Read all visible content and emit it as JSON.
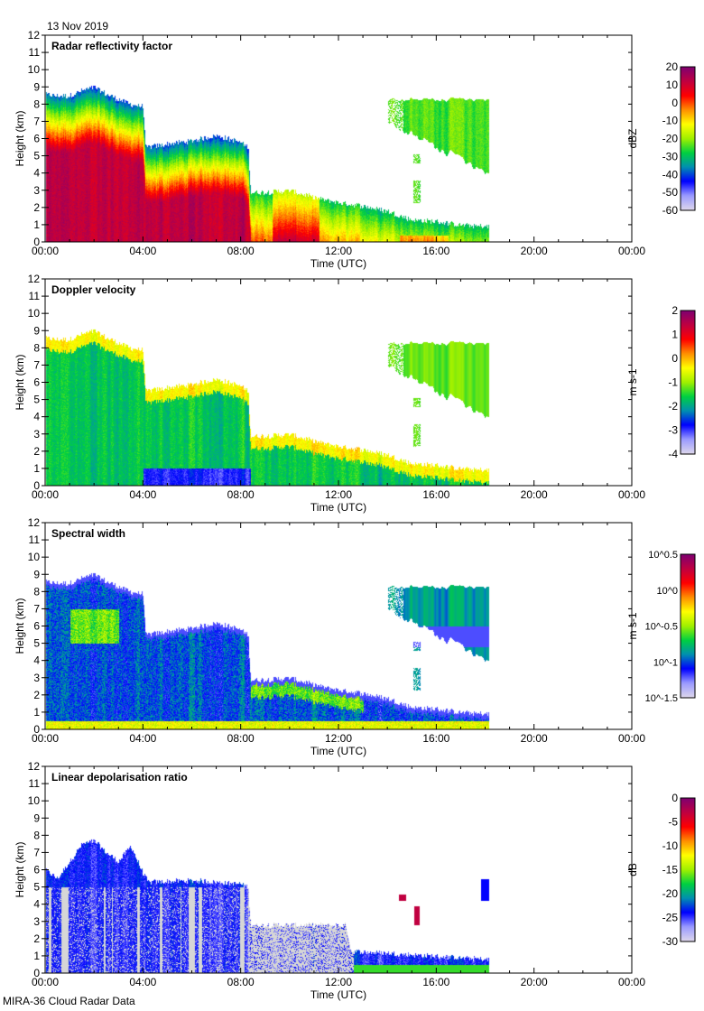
{
  "header": {
    "date": "13 Nov 2019"
  },
  "footer": {
    "source": "MIRA-36 Cloud Radar Data"
  },
  "chart_data": {
    "type": "heatmap",
    "x_axis": {
      "label": "Time (UTC)",
      "range_hours": [
        0,
        24
      ],
      "tick_labels": [
        "00:00",
        "04:00",
        "08:00",
        "12:00",
        "16:00",
        "20:00",
        "00:00"
      ],
      "tick_hours": [
        0,
        4,
        8,
        12,
        16,
        20,
        24
      ]
    },
    "y_axis": {
      "label": "Height (km)",
      "range": [
        0,
        12
      ],
      "tick_labels": [
        "0",
        "1",
        "2",
        "3",
        "4",
        "5",
        "6",
        "7",
        "8",
        "9",
        "10",
        "11",
        "12"
      ]
    },
    "data_end_hour": 18.15,
    "echo_top_km": {
      "hours": [
        0,
        0.5,
        1,
        1.5,
        2,
        2.5,
        3,
        3.5,
        4,
        4.1,
        5,
        6,
        7,
        8,
        8.3,
        8.4,
        9,
        10,
        11,
        12,
        13,
        14,
        15,
        16,
        17,
        18.15
      ],
      "km": [
        8.6,
        8.5,
        8.5,
        8.8,
        9.0,
        8.6,
        8.3,
        8.0,
        7.9,
        5.5,
        5.7,
        5.9,
        6.2,
        5.8,
        5.5,
        2.9,
        2.9,
        3.0,
        2.6,
        2.3,
        2.1,
        1.8,
        1.3,
        1.2,
        1.0,
        0.9
      ]
    },
    "upper_cloud": {
      "start_hour": 14.0,
      "end_hour": 18.15,
      "top_km": 8.3,
      "base_km_start": 7.0,
      "base_km_end": 4.0
    },
    "ldr_echo_top_km": {
      "hours": [
        0,
        0.5,
        1.5,
        2,
        2.5,
        3,
        3.5,
        4,
        4.2,
        6,
        8,
        8.3,
        8.4,
        12.3,
        12.5,
        16,
        18.15
      ],
      "km": [
        6,
        5.5,
        7.5,
        7.7,
        7,
        6.5,
        7.4,
        5.8,
        5.3,
        5.4,
        5.2,
        5.0,
        2.8,
        2.8,
        1.3,
        1.0,
        0.8
      ]
    },
    "panels": [
      {
        "key": "Z",
        "title": "Radar reflectivity factor",
        "colorbar": {
          "label": "dBZ",
          "range": [
            -60,
            20
          ],
          "scale": "linear",
          "tick_labels": [
            "20",
            "10",
            "0",
            "-10",
            "-20",
            "-30",
            "-40",
            "-50",
            "-60"
          ]
        }
      },
      {
        "key": "V",
        "title": "Doppler velocity",
        "colorbar": {
          "label": "m s-1",
          "range": [
            -4,
            2
          ],
          "scale": "linear",
          "tick_labels": [
            "2",
            "1",
            "0",
            "-1",
            "-2",
            "-3",
            "-4"
          ]
        }
      },
      {
        "key": "W",
        "title": "Spectral width",
        "colorbar": {
          "label": "m s-1",
          "range": [
            -1.5,
            0.5
          ],
          "scale": "log10",
          "tick_labels": [
            "10^0.5",
            "10^0",
            "10^-0.5",
            "10^-1",
            "10^-1.5"
          ]
        }
      },
      {
        "key": "L",
        "title": "Linear depolarisation ratio",
        "colorbar": {
          "label": "dB",
          "range": [
            -30,
            0
          ],
          "scale": "linear",
          "tick_labels": [
            "0",
            "-5",
            "-10",
            "-15",
            "-20",
            "-25",
            "-30"
          ]
        }
      }
    ],
    "colormap": [
      "#dcd6ec",
      "#9a9aff",
      "#0000ff",
      "#0090b0",
      "#00d040",
      "#a0f000",
      "#ffff00",
      "#ff9000",
      "#ff0000",
      "#c00040",
      "#800070"
    ],
    "ldr_gray": "#d6d6d6"
  }
}
